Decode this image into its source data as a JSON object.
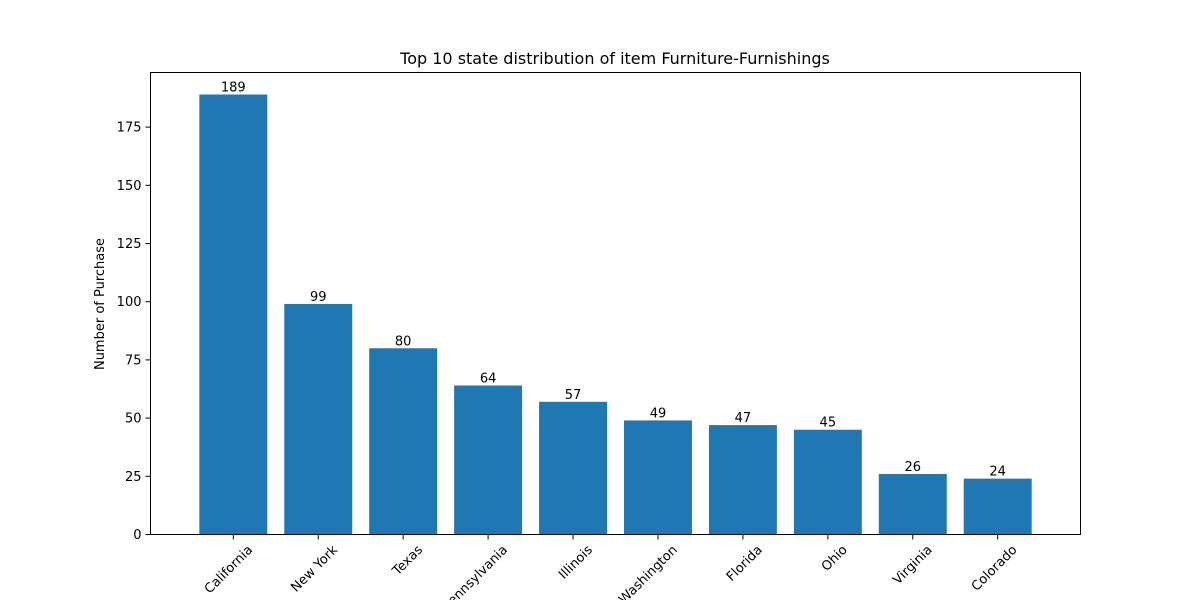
{
  "chart_data": {
    "type": "bar",
    "title": "Top 10 state distribution of item Furniture-Furnishings",
    "xlabel": "",
    "ylabel": "Number of Purchase",
    "categories": [
      "California",
      "New York",
      "Texas",
      "Pennsylvania",
      "Illinois",
      "Washington",
      "Florida",
      "Ohio",
      "Virginia",
      "Colorado"
    ],
    "values": [
      189,
      99,
      80,
      64,
      57,
      49,
      47,
      45,
      26,
      24
    ],
    "ylim": [
      0,
      198.45
    ],
    "yticks": [
      0,
      25,
      50,
      75,
      100,
      125,
      150,
      175
    ],
    "bar_color": "#1f77b4",
    "grid": false,
    "legend": "none",
    "xtick_rotation": 45,
    "data_labels": true
  }
}
